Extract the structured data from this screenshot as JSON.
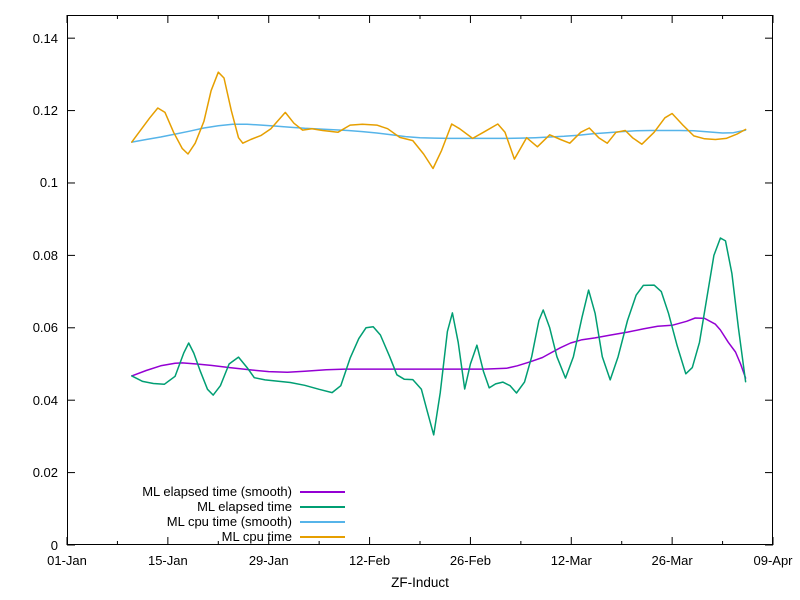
{
  "chart_data": {
    "type": "line",
    "title": "",
    "xlabel": "ZF-Induct",
    "ylabel": "",
    "grid": false,
    "legend_position": "inside bottom-left",
    "x_axis": {
      "unit": "date-days-from-01-Jan",
      "range_days": [
        0,
        98
      ],
      "major_ticks": [
        {
          "day": 0,
          "label": "01-Jan"
        },
        {
          "day": 14,
          "label": "15-Jan"
        },
        {
          "day": 28,
          "label": "29-Jan"
        },
        {
          "day": 42,
          "label": "12-Feb"
        },
        {
          "day": 56,
          "label": "26-Feb"
        },
        {
          "day": 70,
          "label": "12-Mar"
        },
        {
          "day": 84,
          "label": "26-Mar"
        },
        {
          "day": 98,
          "label": "09-Apr"
        }
      ],
      "minor_tick_days": [
        7,
        21,
        35,
        49,
        63,
        77,
        91
      ]
    },
    "y_axis": {
      "range": [
        0,
        0.1464
      ],
      "ticks": [
        {
          "value": 0,
          "label": "0"
        },
        {
          "value": 0.02,
          "label": "0.02"
        },
        {
          "value": 0.04,
          "label": "0.04"
        },
        {
          "value": 0.06,
          "label": "0.06"
        },
        {
          "value": 0.08,
          "label": "0.08"
        },
        {
          "value": 0.1,
          "label": "0.1"
        },
        {
          "value": 0.12,
          "label": "0.12"
        },
        {
          "value": 0.14,
          "label": "0.14"
        }
      ]
    },
    "series": [
      {
        "name": "ML elapsed time (smooth)",
        "color": "#9400d3",
        "points": [
          [
            9.0,
            0.0467
          ],
          [
            11.0,
            0.0482
          ],
          [
            13.0,
            0.0495
          ],
          [
            15.0,
            0.0502
          ],
          [
            16.0,
            0.0503
          ],
          [
            18.0,
            0.05
          ],
          [
            20.0,
            0.0496
          ],
          [
            22.6,
            0.049
          ],
          [
            25.8,
            0.0483
          ],
          [
            28.0,
            0.0479
          ],
          [
            30.6,
            0.0477
          ],
          [
            33.0,
            0.048
          ],
          [
            36.0,
            0.0484
          ],
          [
            38.6,
            0.0486
          ],
          [
            42.0,
            0.0486
          ],
          [
            46.0,
            0.0486
          ],
          [
            50.0,
            0.0486
          ],
          [
            54.0,
            0.0486
          ],
          [
            58.0,
            0.0486
          ],
          [
            61.0,
            0.0488
          ],
          [
            62.5,
            0.0495
          ],
          [
            64.3,
            0.0506
          ],
          [
            66.0,
            0.0518
          ],
          [
            67.1,
            0.053
          ],
          [
            68.5,
            0.0545
          ],
          [
            69.9,
            0.0558
          ],
          [
            71.5,
            0.0567
          ],
          [
            73.3,
            0.0572
          ],
          [
            75.5,
            0.058
          ],
          [
            77.8,
            0.0588
          ],
          [
            80.0,
            0.0597
          ],
          [
            82.0,
            0.0604
          ],
          [
            84.0,
            0.0607
          ],
          [
            86.0,
            0.0618
          ],
          [
            87.2,
            0.0627
          ],
          [
            88.5,
            0.0626
          ],
          [
            90.0,
            0.061
          ],
          [
            90.7,
            0.0594
          ],
          [
            91.8,
            0.056
          ],
          [
            92.8,
            0.0533
          ],
          [
            93.5,
            0.05
          ],
          [
            94.2,
            0.0461
          ]
        ]
      },
      {
        "name": "ML elapsed time",
        "color": "#009e73",
        "points": [
          [
            9.0,
            0.0467
          ],
          [
            10.5,
            0.0452
          ],
          [
            12.0,
            0.0446
          ],
          [
            13.5,
            0.0444
          ],
          [
            15.0,
            0.0466
          ],
          [
            16.2,
            0.053
          ],
          [
            16.9,
            0.0558
          ],
          [
            17.6,
            0.053
          ],
          [
            18.5,
            0.048
          ],
          [
            19.5,
            0.043
          ],
          [
            20.3,
            0.0414
          ],
          [
            21.3,
            0.044
          ],
          [
            22.5,
            0.05
          ],
          [
            23.8,
            0.0519
          ],
          [
            25.0,
            0.049
          ],
          [
            26.0,
            0.0462
          ],
          [
            27.5,
            0.0456
          ],
          [
            29.0,
            0.0453
          ],
          [
            31.0,
            0.0449
          ],
          [
            33.0,
            0.0441
          ],
          [
            35.0,
            0.043
          ],
          [
            36.8,
            0.0421
          ],
          [
            38.0,
            0.044
          ],
          [
            39.3,
            0.0516
          ],
          [
            40.5,
            0.057
          ],
          [
            41.5,
            0.06
          ],
          [
            42.5,
            0.0603
          ],
          [
            43.5,
            0.058
          ],
          [
            44.8,
            0.052
          ],
          [
            45.8,
            0.047
          ],
          [
            46.8,
            0.0458
          ],
          [
            48.0,
            0.0457
          ],
          [
            49.2,
            0.043
          ],
          [
            50.0,
            0.037
          ],
          [
            50.9,
            0.0304
          ],
          [
            51.8,
            0.042
          ],
          [
            52.8,
            0.059
          ],
          [
            53.5,
            0.0641
          ],
          [
            54.3,
            0.056
          ],
          [
            55.2,
            0.0431
          ],
          [
            56.0,
            0.05
          ],
          [
            56.9,
            0.0552
          ],
          [
            57.8,
            0.048
          ],
          [
            58.6,
            0.0434
          ],
          [
            59.5,
            0.0445
          ],
          [
            60.5,
            0.045
          ],
          [
            61.5,
            0.044
          ],
          [
            62.4,
            0.042
          ],
          [
            63.5,
            0.045
          ],
          [
            64.5,
            0.052
          ],
          [
            65.5,
            0.062
          ],
          [
            66.1,
            0.0649
          ],
          [
            67.0,
            0.06
          ],
          [
            68.0,
            0.052
          ],
          [
            69.2,
            0.0461
          ],
          [
            70.3,
            0.052
          ],
          [
            71.5,
            0.063
          ],
          [
            72.4,
            0.0704
          ],
          [
            73.3,
            0.064
          ],
          [
            74.3,
            0.052
          ],
          [
            75.4,
            0.0456
          ],
          [
            76.5,
            0.052
          ],
          [
            77.8,
            0.062
          ],
          [
            79.0,
            0.069
          ],
          [
            80.0,
            0.0717
          ],
          [
            81.5,
            0.0718
          ],
          [
            82.5,
            0.07
          ],
          [
            83.5,
            0.064
          ],
          [
            84.7,
            0.055
          ],
          [
            85.9,
            0.0473
          ],
          [
            86.8,
            0.049
          ],
          [
            87.8,
            0.056
          ],
          [
            88.8,
            0.068
          ],
          [
            89.8,
            0.08
          ],
          [
            90.7,
            0.0848
          ],
          [
            91.4,
            0.084
          ],
          [
            92.3,
            0.075
          ],
          [
            93.2,
            0.06
          ],
          [
            94.0,
            0.048
          ],
          [
            94.2,
            0.0451
          ]
        ]
      },
      {
        "name": "ML cpu time (smooth)",
        "color": "#56b4e9",
        "points": [
          [
            9.0,
            0.1113
          ],
          [
            11.0,
            0.112
          ],
          [
            13.0,
            0.1127
          ],
          [
            15.0,
            0.1135
          ],
          [
            17.0,
            0.1143
          ],
          [
            19.0,
            0.1152
          ],
          [
            21.0,
            0.1158
          ],
          [
            23.0,
            0.1162
          ],
          [
            25.0,
            0.1162
          ],
          [
            27.0,
            0.116
          ],
          [
            29.0,
            0.1157
          ],
          [
            31.0,
            0.1154
          ],
          [
            33.0,
            0.1151
          ],
          [
            35.0,
            0.1149
          ],
          [
            37.0,
            0.1147
          ],
          [
            39.0,
            0.1145
          ],
          [
            41.0,
            0.1142
          ],
          [
            43.0,
            0.1138
          ],
          [
            45.0,
            0.1133
          ],
          [
            47.0,
            0.1128
          ],
          [
            49.0,
            0.1125
          ],
          [
            51.0,
            0.1124
          ],
          [
            53.0,
            0.1123
          ],
          [
            55.0,
            0.1123
          ],
          [
            57.0,
            0.1123
          ],
          [
            59.0,
            0.1123
          ],
          [
            61.0,
            0.1123
          ],
          [
            63.0,
            0.1124
          ],
          [
            65.0,
            0.1125
          ],
          [
            67.0,
            0.1127
          ],
          [
            69.0,
            0.1129
          ],
          [
            71.0,
            0.1132
          ],
          [
            73.0,
            0.1136
          ],
          [
            75.0,
            0.1139
          ],
          [
            77.0,
            0.1142
          ],
          [
            79.0,
            0.1144
          ],
          [
            81.0,
            0.1145
          ],
          [
            83.0,
            0.1145
          ],
          [
            85.0,
            0.1145
          ],
          [
            87.0,
            0.1144
          ],
          [
            89.0,
            0.1141
          ],
          [
            91.0,
            0.1138
          ],
          [
            92.5,
            0.1139
          ],
          [
            94.2,
            0.1146
          ]
        ]
      },
      {
        "name": "ML cpu time",
        "color": "#e69f00",
        "points": [
          [
            9.0,
            0.1113
          ],
          [
            10.0,
            0.114
          ],
          [
            11.5,
            0.118
          ],
          [
            12.6,
            0.1207
          ],
          [
            13.6,
            0.1195
          ],
          [
            14.8,
            0.114
          ],
          [
            16.0,
            0.1095
          ],
          [
            16.8,
            0.108
          ],
          [
            17.8,
            0.111
          ],
          [
            19.0,
            0.117
          ],
          [
            20.0,
            0.1255
          ],
          [
            21.0,
            0.1306
          ],
          [
            21.8,
            0.129
          ],
          [
            22.8,
            0.12
          ],
          [
            23.8,
            0.1125
          ],
          [
            24.4,
            0.111
          ],
          [
            25.5,
            0.112
          ],
          [
            26.9,
            0.1131
          ],
          [
            28.3,
            0.115
          ],
          [
            30.3,
            0.1195
          ],
          [
            31.5,
            0.1165
          ],
          [
            32.7,
            0.1146
          ],
          [
            34.0,
            0.115
          ],
          [
            35.5,
            0.1145
          ],
          [
            37.6,
            0.114
          ],
          [
            39.3,
            0.116
          ],
          [
            41.0,
            0.1162
          ],
          [
            43.0,
            0.116
          ],
          [
            44.5,
            0.115
          ],
          [
            46.2,
            0.1126
          ],
          [
            48.0,
            0.1117
          ],
          [
            49.5,
            0.108
          ],
          [
            50.8,
            0.104
          ],
          [
            52.0,
            0.109
          ],
          [
            53.4,
            0.1163
          ],
          [
            54.5,
            0.115
          ],
          [
            56.3,
            0.1123
          ],
          [
            57.8,
            0.114
          ],
          [
            59.8,
            0.1163
          ],
          [
            60.8,
            0.114
          ],
          [
            62.1,
            0.1066
          ],
          [
            63.8,
            0.1125
          ],
          [
            65.3,
            0.11
          ],
          [
            67.0,
            0.1133
          ],
          [
            68.5,
            0.112
          ],
          [
            69.8,
            0.111
          ],
          [
            71.3,
            0.114
          ],
          [
            72.5,
            0.1152
          ],
          [
            73.8,
            0.1125
          ],
          [
            75.0,
            0.111
          ],
          [
            76.2,
            0.114
          ],
          [
            77.5,
            0.1145
          ],
          [
            78.5,
            0.1125
          ],
          [
            79.8,
            0.1107
          ],
          [
            81.5,
            0.114
          ],
          [
            83.0,
            0.118
          ],
          [
            84.0,
            0.1192
          ],
          [
            85.5,
            0.116
          ],
          [
            87.0,
            0.113
          ],
          [
            88.5,
            0.1122
          ],
          [
            90.0,
            0.112
          ],
          [
            91.5,
            0.1123
          ],
          [
            93.0,
            0.1135
          ],
          [
            94.2,
            0.1148
          ]
        ]
      }
    ],
    "legend_entries": [
      "ML elapsed time (smooth)",
      "ML elapsed time",
      "ML cpu time (smooth)",
      "ML cpu time"
    ]
  },
  "style": {
    "background": "#ffffff",
    "border_color": "#000000",
    "text_color": "#000000"
  }
}
